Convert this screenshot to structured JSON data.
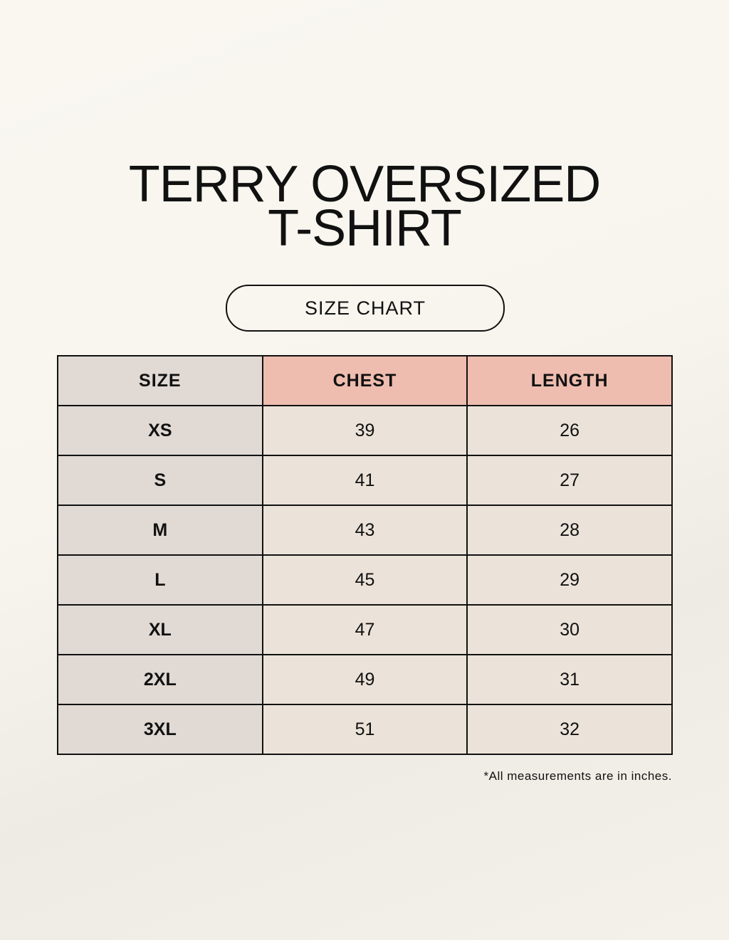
{
  "title": {
    "line1": "TERRY OVERSIZED",
    "line2": "T-SHIRT"
  },
  "subtitle": "SIZE CHART",
  "table": {
    "headers": [
      "SIZE",
      "CHEST",
      "LENGTH"
    ],
    "rows": [
      [
        "XS",
        "39",
        "26"
      ],
      [
        "S",
        "41",
        "27"
      ],
      [
        "M",
        "43",
        "28"
      ],
      [
        "L",
        "45",
        "29"
      ],
      [
        "XL",
        "47",
        "30"
      ],
      [
        "2XL",
        "49",
        "31"
      ],
      [
        "3XL",
        "51",
        "32"
      ]
    ]
  },
  "note": "*All measurements are in inches.",
  "colors": {
    "size_column": "#e0d9d4",
    "header_accent": "#eebdaf",
    "cell": "#ebe3d9"
  }
}
